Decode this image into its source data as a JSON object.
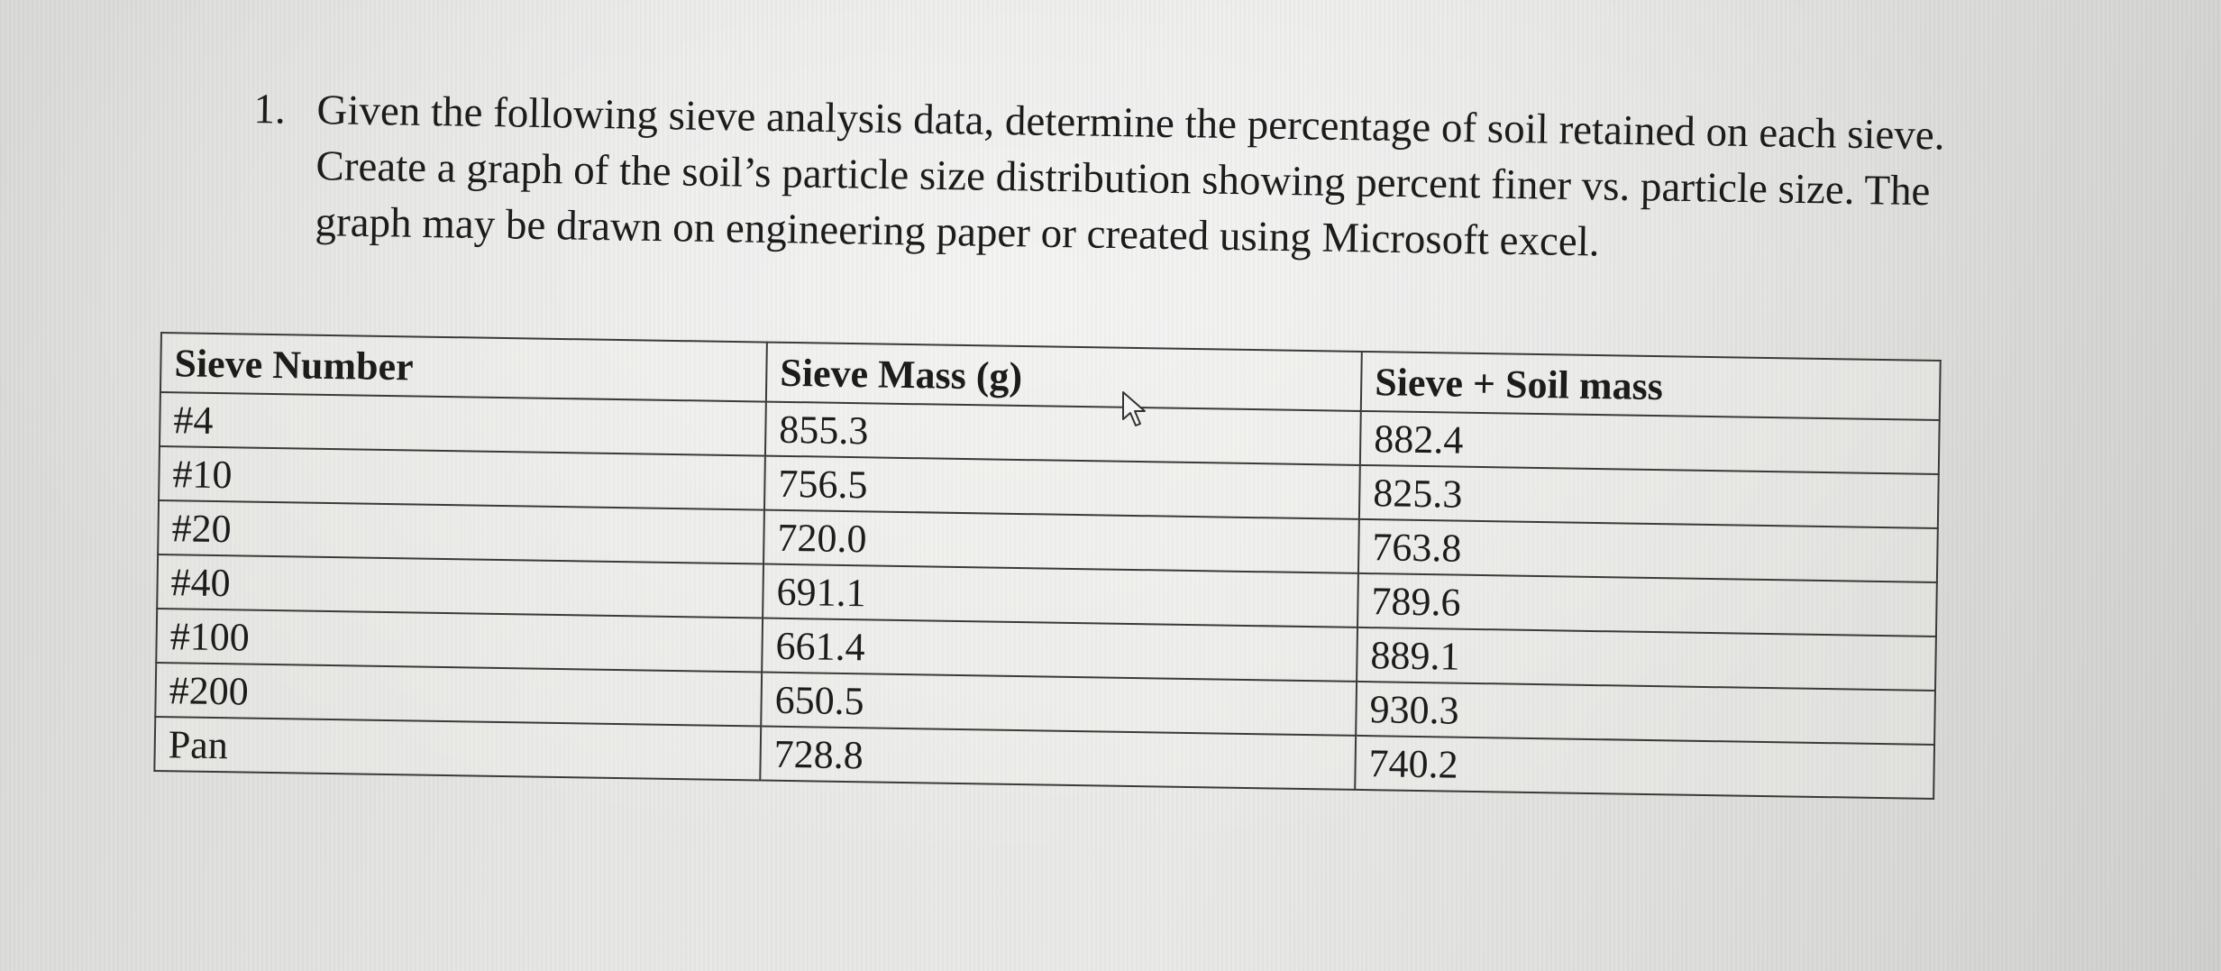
{
  "question": {
    "number": "1.",
    "text": "Given the following sieve analysis data, determine the percentage of soil retained on each sieve. Create a graph of the soil’s particle size distribution showing percent finer vs. particle size. The graph may be drawn on engineering paper or created using Microsoft excel."
  },
  "table": {
    "headers": [
      "Sieve Number",
      "Sieve Mass (g)",
      "Sieve + Soil mass"
    ],
    "rows": [
      [
        "#4",
        "855.3",
        "882.4"
      ],
      [
        "#10",
        "756.5",
        "825.3"
      ],
      [
        "#20",
        "720.0",
        "763.8"
      ],
      [
        "#40",
        "691.1",
        "789.6"
      ],
      [
        "#100",
        "661.4",
        "889.1"
      ],
      [
        "#200",
        "650.5",
        "930.3"
      ],
      [
        "Pan",
        "728.8",
        "740.2"
      ]
    ]
  },
  "cursor": {
    "icon": "pointer-arrow-icon"
  }
}
